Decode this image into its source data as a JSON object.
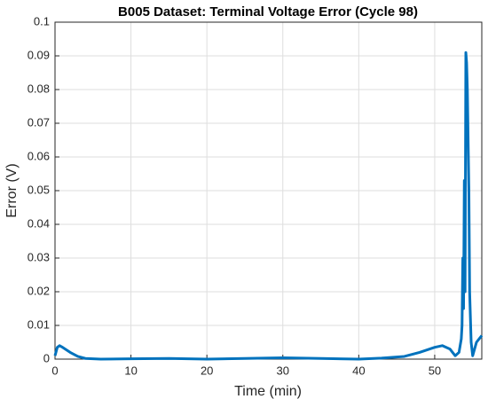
{
  "chart_data": {
    "type": "line",
    "title": "B005 Dataset: Terminal Voltage Error (Cycle 98)",
    "xlabel": "Time (min)",
    "ylabel": "Error (V)",
    "x": [
      0,
      0.3,
      0.6,
      1,
      2,
      3,
      4,
      6,
      10,
      15,
      20,
      25,
      30,
      35,
      40,
      43,
      46,
      48,
      50,
      51,
      52,
      52.7,
      53.2,
      53.5,
      53.6,
      53.7,
      53.8,
      53.9,
      54.0,
      54.1,
      54.2,
      54.3,
      54.5,
      54.6,
      54.8,
      55,
      55.5,
      56.2
    ],
    "series": [
      {
        "name": "Error",
        "color": "#0072bd",
        "values": [
          0.001,
          0.0035,
          0.004,
          0.0035,
          0.002,
          0.0008,
          0.0002,
          0,
          0.0001,
          0.0002,
          0,
          0.0002,
          0.0004,
          0.0002,
          0,
          0.0003,
          0.0008,
          0.002,
          0.0035,
          0.004,
          0.003,
          0.001,
          0.002,
          0.006,
          0.01,
          0.03,
          0.015,
          0.053,
          0.02,
          0.091,
          0.088,
          0.08,
          0.05,
          0.02,
          0.005,
          0.001,
          0.005,
          0.007
        ]
      }
    ],
    "xlim": [
      0,
      56.2
    ],
    "ylim": [
      0,
      0.1
    ],
    "xticks": [
      0,
      10,
      20,
      30,
      40,
      50
    ],
    "yticks": [
      0,
      0.01,
      0.02,
      0.03,
      0.04,
      0.05,
      0.06,
      0.07,
      0.08,
      0.09,
      0.1
    ],
    "grid": true
  }
}
